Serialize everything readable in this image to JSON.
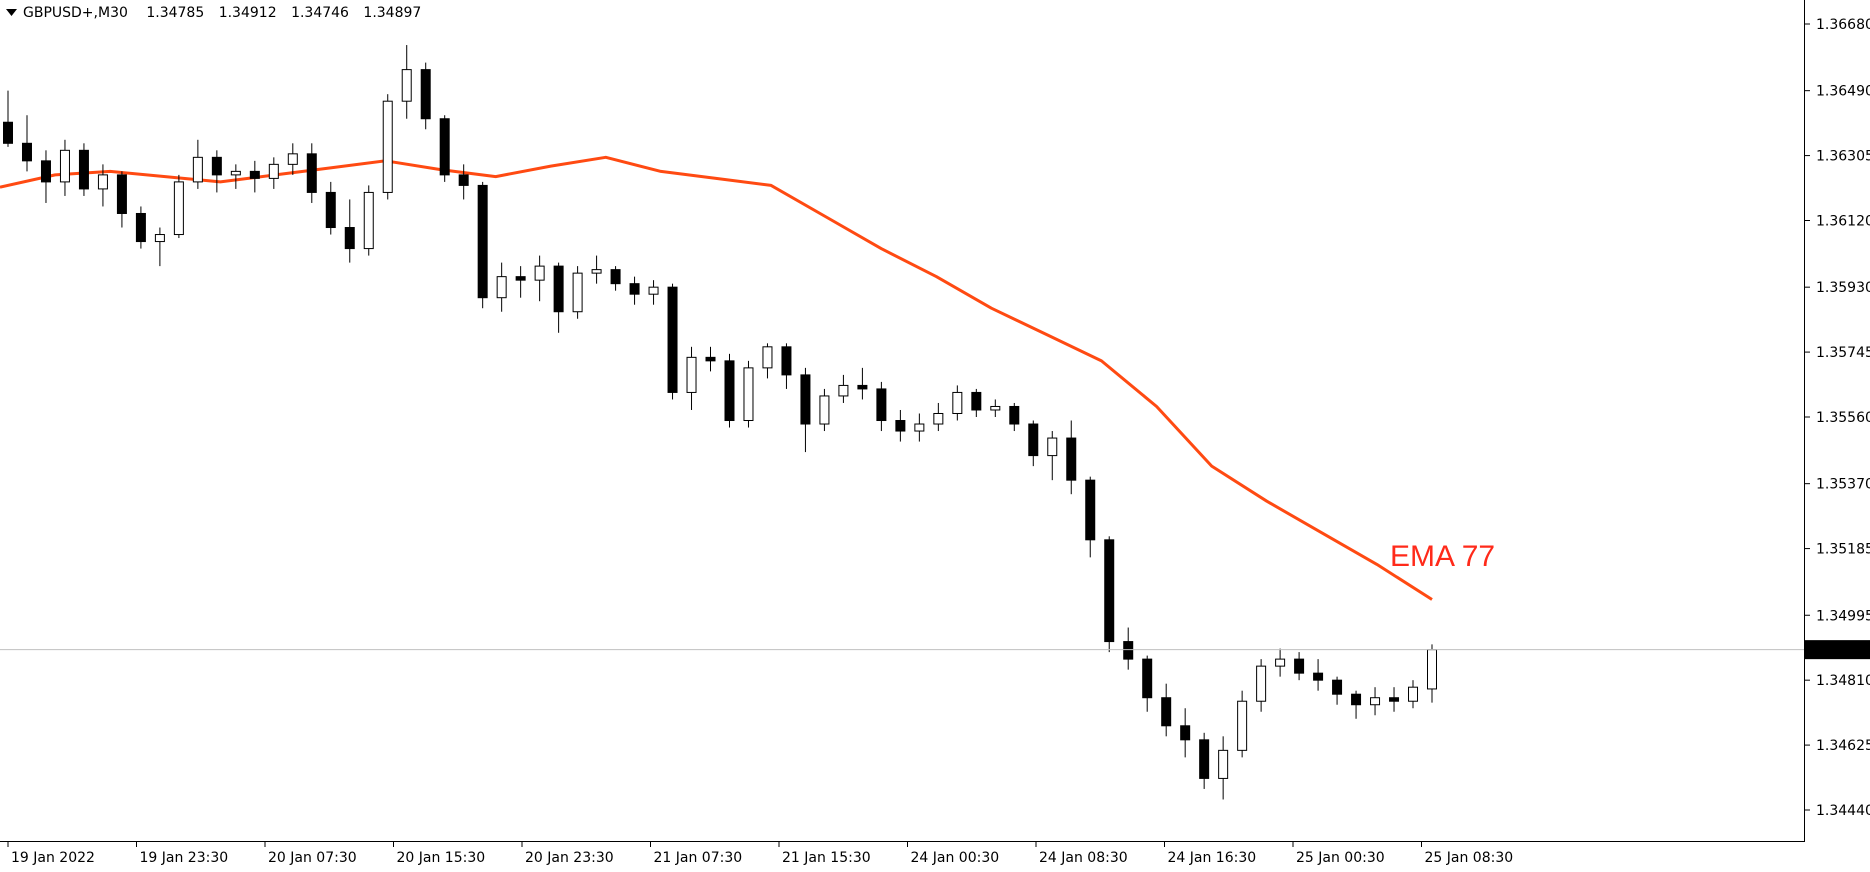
{
  "header": {
    "symbol": "GBPUSD+,M30",
    "open": "1.34785",
    "high": "1.34912",
    "low": "1.34746",
    "close": "1.34897"
  },
  "colors": {
    "background": "#ffffff",
    "axis": "#000000",
    "candle_up_body": "#ffffff",
    "candle_down_body": "#000000",
    "candle_outline": "#000000",
    "ema": "#ff4a12",
    "ema_label": "#ff2a1a",
    "bid_line": "#c0c0c0",
    "price_tag_bg": "#000000",
    "price_tag_text": "#ffffff"
  },
  "chart_data": {
    "type": "candlestick",
    "symbol": "GBPUSD+",
    "timeframe": "M30",
    "grid": false,
    "ylim": [
      1.3435,
      1.367
    ],
    "y_ticks": [
      "1.36680",
      "1.36490",
      "1.36305",
      "1.36120",
      "1.35930",
      "1.35745",
      "1.35560",
      "1.35370",
      "1.35185",
      "1.34995",
      "1.34810",
      "1.34625",
      "1.34440"
    ],
    "x_ticks": [
      "19 Jan 2022",
      "19 Jan 23:30",
      "20 Jan 07:30",
      "20 Jan 15:30",
      "20 Jan 23:30",
      "21 Jan 07:30",
      "21 Jan 15:30",
      "24 Jan 00:30",
      "24 Jan 08:30",
      "24 Jan 16:30",
      "25 Jan 00:30",
      "25 Jan 08:30"
    ],
    "current_price": "1.34897",
    "ema": {
      "label": "EMA 77",
      "values": [
        1.36215,
        1.3625,
        1.3626,
        1.36245,
        1.3623,
        1.3625,
        1.3627,
        1.3629,
        1.36265,
        1.36245,
        1.36275,
        1.363,
        1.3626,
        1.3624,
        1.3622,
        1.3613,
        1.3604,
        1.3596,
        1.3587,
        1.35795,
        1.3572,
        1.3559,
        1.3542,
        1.3532,
        1.3523,
        1.3514,
        1.3504
      ]
    },
    "candles": [
      [
        1.364,
        1.3649,
        1.3633,
        1.3634
      ],
      [
        1.3634,
        1.3642,
        1.3626,
        1.3629
      ],
      [
        1.3629,
        1.3632,
        1.3617,
        1.3623
      ],
      [
        1.3623,
        1.3635,
        1.3619,
        1.3632
      ],
      [
        1.3632,
        1.3634,
        1.3619,
        1.3621
      ],
      [
        1.3621,
        1.3628,
        1.3616,
        1.3625
      ],
      [
        1.3625,
        1.3626,
        1.361,
        1.3614
      ],
      [
        1.3614,
        1.3616,
        1.3604,
        1.3606
      ],
      [
        1.3606,
        1.361,
        1.3599,
        1.3608
      ],
      [
        1.3608,
        1.3625,
        1.3607,
        1.3623
      ],
      [
        1.3623,
        1.3635,
        1.3621,
        1.363
      ],
      [
        1.363,
        1.3632,
        1.362,
        1.3625
      ],
      [
        1.3625,
        1.3628,
        1.3621,
        1.3626
      ],
      [
        1.3626,
        1.3629,
        1.362,
        1.3624
      ],
      [
        1.3624,
        1.363,
        1.3621,
        1.3628
      ],
      [
        1.3628,
        1.3634,
        1.3625,
        1.3631
      ],
      [
        1.3631,
        1.3634,
        1.3617,
        1.362
      ],
      [
        1.362,
        1.3623,
        1.3608,
        1.361
      ],
      [
        1.361,
        1.3618,
        1.36,
        1.3604
      ],
      [
        1.3604,
        1.3622,
        1.3602,
        1.362
      ],
      [
        1.362,
        1.3648,
        1.3618,
        1.3646
      ],
      [
        1.3646,
        1.3662,
        1.3641,
        1.3655
      ],
      [
        1.3655,
        1.3657,
        1.3638,
        1.3641
      ],
      [
        1.3641,
        1.3642,
        1.3623,
        1.3625
      ],
      [
        1.3625,
        1.3628,
        1.3618,
        1.3622
      ],
      [
        1.3622,
        1.3623,
        1.3587,
        1.359
      ],
      [
        1.359,
        1.36,
        1.3586,
        1.3596
      ],
      [
        1.3596,
        1.3599,
        1.359,
        1.3595
      ],
      [
        1.3595,
        1.3602,
        1.3589,
        1.3599
      ],
      [
        1.3599,
        1.36,
        1.358,
        1.3586
      ],
      [
        1.3586,
        1.3599,
        1.3584,
        1.3597
      ],
      [
        1.3597,
        1.3602,
        1.3594,
        1.3598
      ],
      [
        1.3598,
        1.3599,
        1.3592,
        1.3594
      ],
      [
        1.3594,
        1.3596,
        1.3588,
        1.3591
      ],
      [
        1.3591,
        1.3595,
        1.3588,
        1.3593
      ],
      [
        1.3593,
        1.3594,
        1.3561,
        1.3563
      ],
      [
        1.3563,
        1.3576,
        1.3558,
        1.3573
      ],
      [
        1.3573,
        1.3576,
        1.3569,
        1.3572
      ],
      [
        1.3572,
        1.3574,
        1.3553,
        1.3555
      ],
      [
        1.3555,
        1.3572,
        1.3553,
        1.357
      ],
      [
        1.357,
        1.3577,
        1.3567,
        1.3576
      ],
      [
        1.3576,
        1.3577,
        1.3564,
        1.3568
      ],
      [
        1.3568,
        1.357,
        1.3546,
        1.3554
      ],
      [
        1.3554,
        1.3564,
        1.3552,
        1.3562
      ],
      [
        1.3562,
        1.3568,
        1.356,
        1.3565
      ],
      [
        1.3565,
        1.357,
        1.3561,
        1.3564
      ],
      [
        1.3564,
        1.3566,
        1.3552,
        1.3555
      ],
      [
        1.3555,
        1.3558,
        1.3549,
        1.3552
      ],
      [
        1.3552,
        1.3557,
        1.3549,
        1.3554
      ],
      [
        1.3554,
        1.356,
        1.3552,
        1.3557
      ],
      [
        1.3557,
        1.3565,
        1.3555,
        1.3563
      ],
      [
        1.3563,
        1.3564,
        1.3556,
        1.3558
      ],
      [
        1.3558,
        1.3561,
        1.3556,
        1.3559
      ],
      [
        1.3559,
        1.356,
        1.3552,
        1.3554
      ],
      [
        1.3554,
        1.3555,
        1.3542,
        1.3545
      ],
      [
        1.3545,
        1.3552,
        1.3538,
        1.355
      ],
      [
        1.355,
        1.3555,
        1.3534,
        1.3538
      ],
      [
        1.3538,
        1.3539,
        1.3516,
        1.3521
      ],
      [
        1.3521,
        1.3522,
        1.3489,
        1.3492
      ],
      [
        1.3492,
        1.3496,
        1.3484,
        1.3487
      ],
      [
        1.3487,
        1.3488,
        1.3472,
        1.3476
      ],
      [
        1.3476,
        1.348,
        1.3465,
        1.3468
      ],
      [
        1.3468,
        1.3473,
        1.3459,
        1.3464
      ],
      [
        1.3464,
        1.3466,
        1.345,
        1.3453
      ],
      [
        1.3453,
        1.3465,
        1.3447,
        1.3461
      ],
      [
        1.3461,
        1.3478,
        1.3459,
        1.3475
      ],
      [
        1.3475,
        1.3487,
        1.3472,
        1.3485
      ],
      [
        1.3485,
        1.349,
        1.3482,
        1.3487
      ],
      [
        1.3487,
        1.3489,
        1.3481,
        1.3483
      ],
      [
        1.3483,
        1.3487,
        1.3478,
        1.3481
      ],
      [
        1.3481,
        1.3482,
        1.3474,
        1.3477
      ],
      [
        1.3477,
        1.3478,
        1.347,
        1.3474
      ],
      [
        1.3474,
        1.3479,
        1.3471,
        1.3476
      ],
      [
        1.3476,
        1.3479,
        1.3472,
        1.3475
      ],
      [
        1.3475,
        1.3481,
        1.3473,
        1.3479
      ],
      [
        1.34785,
        1.34912,
        1.34746,
        1.34897
      ]
    ]
  }
}
